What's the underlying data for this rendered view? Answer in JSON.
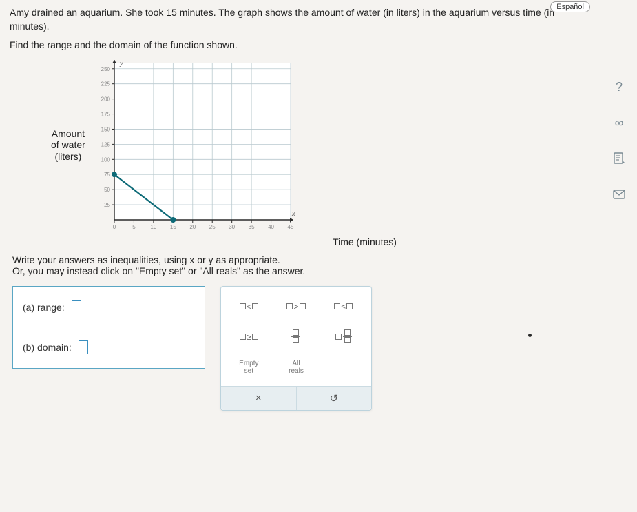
{
  "lang_button": "Español",
  "problem": {
    "p1": "Amy drained an aquarium. She took 15 minutes. The graph shows the amount of water (in liters) in the aquarium versus time (in minutes).",
    "p2": "Find the range and the domain of the function shown."
  },
  "chart": {
    "y_label_l1": "Amount",
    "y_label_l2": "of water",
    "y_label_l3": "(liters)",
    "x_label": "Time (minutes)",
    "y_var": "y",
    "x_var": "x",
    "x_ticks": [
      0,
      5,
      10,
      15,
      20,
      25,
      30,
      35,
      40,
      45
    ],
    "y_ticks": [
      25,
      50,
      75,
      100,
      125,
      150,
      175,
      200,
      225,
      250
    ],
    "xlim": [
      0,
      45
    ],
    "ylim": [
      0,
      260
    ],
    "grid_color": "#b9c9cf",
    "axis_color": "#2b2b2b",
    "line_color": "#0d6a77",
    "point_color": "#0d6a77",
    "background": "#ffffff",
    "points": [
      {
        "x": 0,
        "y": 75
      },
      {
        "x": 15,
        "y": 0
      }
    ],
    "tick_fontsize": 8
  },
  "instructions": {
    "l1": "Write your answers as inequalities, using x or y as appropriate.",
    "l2": "Or, you may instead click on \"Empty set\" or \"All reals\" as the answer."
  },
  "answers": {
    "a_label": "(a) range:",
    "b_label": "(b) domain:"
  },
  "palette": {
    "lt": "<",
    "gt": ">",
    "le": "≤",
    "ge": "≥",
    "empty_l1": "Empty",
    "empty_l2": "set",
    "all_l1": "All",
    "all_l2": "reals",
    "clear": "×",
    "undo": "↺"
  },
  "tools": {
    "help": "?",
    "infinity": "∞"
  },
  "colors": {
    "page_bg": "#f5f3f0",
    "panel_border": "#5aa6c4",
    "input_border": "#3a8fbf",
    "palette_border": "#bcd3dd",
    "palette_footer_bg": "#e7eef1",
    "text": "#333333"
  }
}
